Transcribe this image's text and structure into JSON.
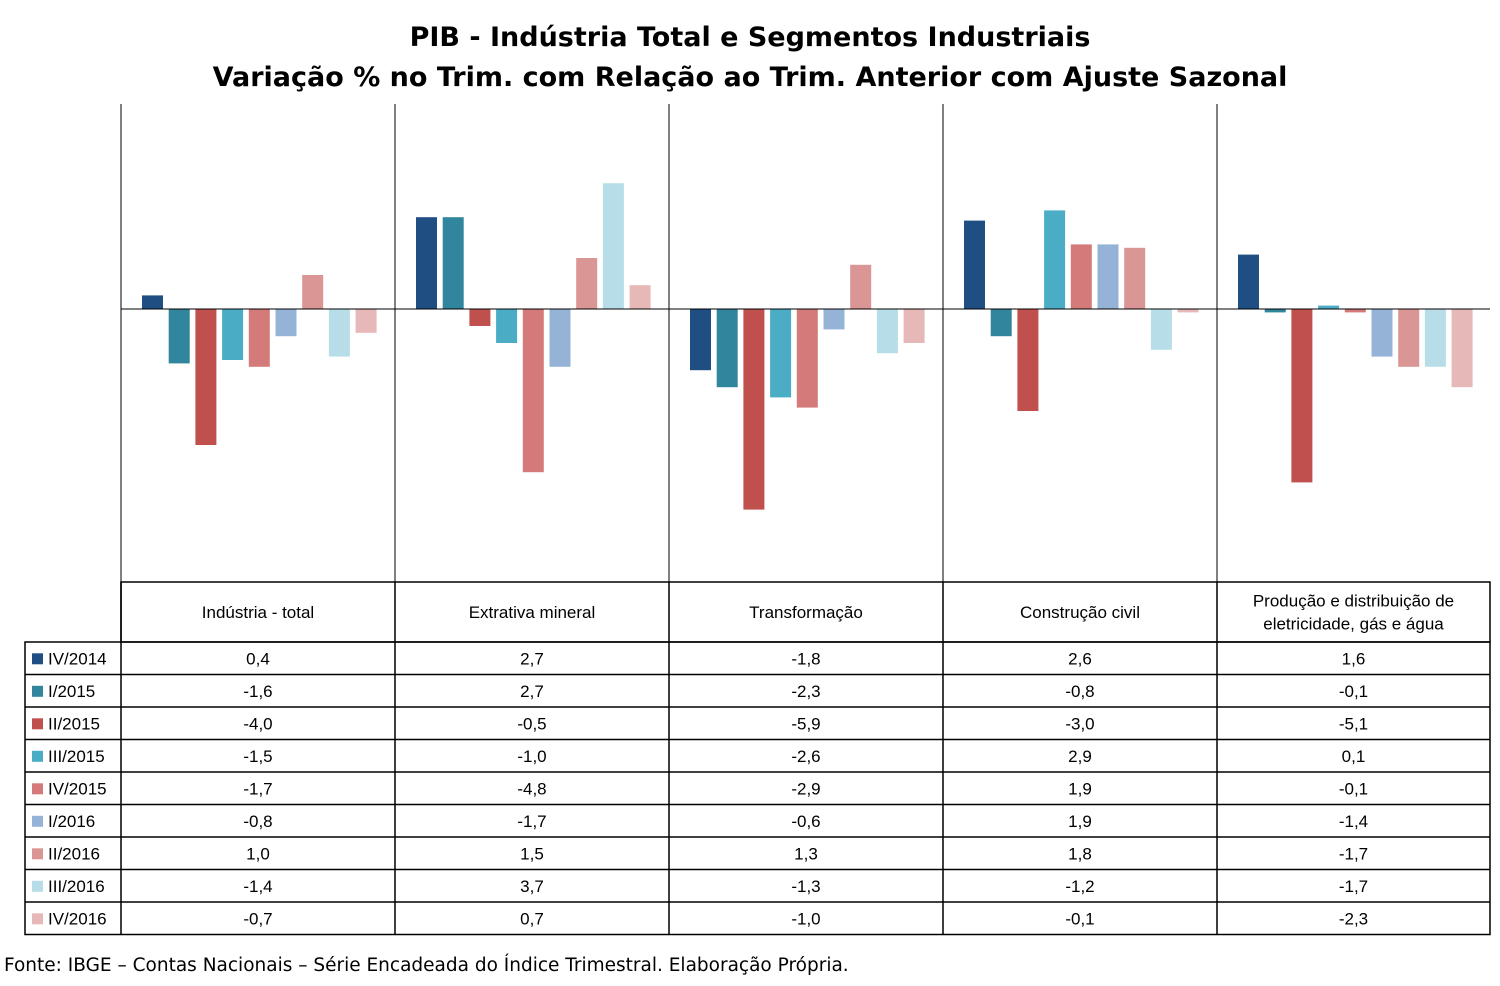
{
  "chart_data": {
    "type": "bar",
    "title": "PIB - Indústria Total e Segmentos Industriais",
    "subtitle": "Variação % no Trim. com Relação ao Trim. Anterior com Ajuste Sazonal",
    "categories": [
      "Indústria - total",
      "Extrativa mineral",
      "Transformação",
      "Construção civil",
      "Produção e distribuição de eletricidade, gás e água"
    ],
    "series": [
      {
        "name": "IV/2014",
        "color": "#1f4e82",
        "values": [
          0.4,
          2.7,
          -1.8,
          2.6,
          1.6
        ],
        "labels": [
          "0,4",
          "2,7",
          "-1,8",
          "2,6",
          "1,6"
        ]
      },
      {
        "name": "I/2015",
        "color": "#31859c",
        "values": [
          -1.6,
          2.7,
          -2.3,
          -0.8,
          -0.1
        ],
        "labels": [
          "-1,6",
          "2,7",
          "-2,3",
          "-0,8",
          "-0,1"
        ]
      },
      {
        "name": "II/2015",
        "color": "#c0504d",
        "values": [
          -4.0,
          -0.5,
          -5.9,
          -3.0,
          -5.1
        ],
        "labels": [
          "-4,0",
          "-0,5",
          "-5,9",
          "-3,0",
          "-5,1"
        ]
      },
      {
        "name": "III/2015",
        "color": "#4bacc6",
        "values": [
          -1.5,
          -1.0,
          -2.6,
          2.9,
          0.1
        ],
        "labels": [
          "-1,5",
          "-1,0",
          "-2,6",
          "2,9",
          "0,1"
        ]
      },
      {
        "name": "IV/2015",
        "color": "#d47a7a",
        "values": [
          -1.7,
          -4.8,
          -2.9,
          1.9,
          -0.1
        ],
        "labels": [
          "-1,7",
          "-4,8",
          "-2,9",
          "1,9",
          "-0,1"
        ]
      },
      {
        "name": "I/2016",
        "color": "#95b3d7",
        "values": [
          -0.8,
          -1.7,
          -0.6,
          1.9,
          -1.4
        ],
        "labels": [
          "-0,8",
          "-1,7",
          "-0,6",
          "1,9",
          "-1,4"
        ]
      },
      {
        "name": "II/2016",
        "color": "#da9694",
        "values": [
          1.0,
          1.5,
          1.3,
          1.8,
          -1.7
        ],
        "labels": [
          "1,0",
          "1,5",
          "1,3",
          "1,8",
          "-1,7"
        ]
      },
      {
        "name": "III/2016",
        "color": "#b7dee8",
        "values": [
          -1.4,
          3.7,
          -1.3,
          -1.2,
          -1.7
        ],
        "labels": [
          "-1,4",
          "3,7",
          "-1,3",
          "-1,2",
          "-1,7"
        ]
      },
      {
        "name": "IV/2016",
        "color": "#e6b9b8",
        "values": [
          -0.7,
          0.7,
          -1.0,
          -0.1,
          -2.3
        ],
        "labels": [
          "-0,7",
          "0,7",
          "-1,0",
          "-0,1",
          "-2,3"
        ]
      }
    ],
    "ylim": [
      -8,
      6
    ],
    "grid": false,
    "legend": "data table below chart"
  },
  "footer": "Fonte: IBGE – Contas Nacionais – Série Encadeada do Índice Trimestral. Elaboração Própria."
}
